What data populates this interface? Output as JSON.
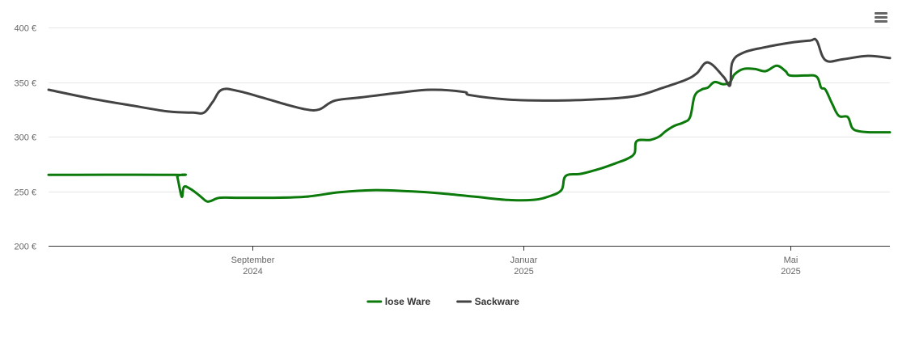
{
  "chart_data": {
    "type": "line",
    "y_ticks": [
      "400 €",
      "350 €",
      "300 €",
      "250 €",
      "200 €"
    ],
    "y_tick_values": [
      400,
      350,
      300,
      250,
      200
    ],
    "ylim": [
      200,
      400
    ],
    "xlim": [
      "2024-06-01",
      "2025-06-15"
    ],
    "x_ticks": [
      {
        "date": "2024-09-01",
        "line1": "September",
        "line2": "2024"
      },
      {
        "date": "2025-01-01",
        "line1": "Januar",
        "line2": "2025"
      },
      {
        "date": "2025-05-01",
        "line1": "Mai",
        "line2": "2025"
      }
    ],
    "grid": "horizontal",
    "legend_position": "bottom-center",
    "series": [
      {
        "name": "lose Ware",
        "color": "#0b7a0b",
        "points": [
          [
            "2024-06-01",
            265
          ],
          [
            "2024-07-28",
            265
          ],
          [
            "2024-07-29",
            263
          ],
          [
            "2024-07-31",
            245
          ],
          [
            "2024-08-01",
            254
          ],
          [
            "2024-08-04",
            252
          ],
          [
            "2024-08-08",
            246
          ],
          [
            "2024-08-11",
            241
          ],
          [
            "2024-08-13",
            241
          ],
          [
            "2024-08-17",
            244
          ],
          [
            "2024-08-24",
            244
          ],
          [
            "2024-09-10",
            244
          ],
          [
            "2024-09-25",
            245
          ],
          [
            "2024-10-10",
            249
          ],
          [
            "2024-10-25",
            251
          ],
          [
            "2024-11-10",
            250
          ],
          [
            "2024-11-25",
            248
          ],
          [
            "2024-12-10",
            245
          ],
          [
            "2024-12-25",
            242
          ],
          [
            "2025-01-05",
            242
          ],
          [
            "2025-01-12",
            245
          ],
          [
            "2025-01-18",
            251
          ],
          [
            "2025-01-20",
            264
          ],
          [
            "2025-01-27",
            266
          ],
          [
            "2025-02-05",
            271
          ],
          [
            "2025-02-12",
            276
          ],
          [
            "2025-02-17",
            280
          ],
          [
            "2025-02-20",
            285
          ],
          [
            "2025-02-21",
            296
          ],
          [
            "2025-02-27",
            297
          ],
          [
            "2025-03-03",
            300
          ],
          [
            "2025-03-06",
            305
          ],
          [
            "2025-03-10",
            310
          ],
          [
            "2025-03-14",
            313
          ],
          [
            "2025-03-17",
            318
          ],
          [
            "2025-03-19",
            337
          ],
          [
            "2025-03-22",
            343
          ],
          [
            "2025-03-25",
            345
          ],
          [
            "2025-03-28",
            350
          ],
          [
            "2025-04-01",
            348
          ],
          [
            "2025-04-04",
            350
          ],
          [
            "2025-04-06",
            357
          ],
          [
            "2025-04-10",
            362
          ],
          [
            "2025-04-15",
            362
          ],
          [
            "2025-04-20",
            360
          ],
          [
            "2025-04-25",
            365
          ],
          [
            "2025-04-29",
            360
          ],
          [
            "2025-05-01",
            356
          ],
          [
            "2025-05-08",
            356
          ],
          [
            "2025-05-13",
            355
          ],
          [
            "2025-05-15",
            345
          ],
          [
            "2025-05-17",
            343
          ],
          [
            "2025-05-20",
            330
          ],
          [
            "2025-05-23",
            319
          ],
          [
            "2025-05-27",
            318
          ],
          [
            "2025-05-29",
            308
          ],
          [
            "2025-06-01",
            305
          ],
          [
            "2025-06-06",
            304
          ],
          [
            "2025-06-11",
            304
          ],
          [
            "2025-06-15",
            304
          ]
        ]
      },
      {
        "name": "Sackware",
        "color": "#434343",
        "points": [
          [
            "2024-06-01",
            343
          ],
          [
            "2024-06-20",
            335
          ],
          [
            "2024-07-10",
            328
          ],
          [
            "2024-07-25",
            323
          ],
          [
            "2024-08-05",
            322
          ],
          [
            "2024-08-10",
            322
          ],
          [
            "2024-08-14",
            332
          ],
          [
            "2024-08-18",
            343
          ],
          [
            "2024-08-25",
            342
          ],
          [
            "2024-09-05",
            336
          ],
          [
            "2024-09-15",
            330
          ],
          [
            "2024-09-25",
            325
          ],
          [
            "2024-10-01",
            325
          ],
          [
            "2024-10-08",
            333
          ],
          [
            "2024-10-20",
            336
          ],
          [
            "2024-11-05",
            340
          ],
          [
            "2024-11-20",
            343
          ],
          [
            "2024-12-05",
            341
          ],
          [
            "2024-12-08",
            338
          ],
          [
            "2024-12-25",
            334
          ],
          [
            "2025-01-10",
            333
          ],
          [
            "2025-02-01",
            334
          ],
          [
            "2025-02-20",
            337
          ],
          [
            "2025-03-05",
            345
          ],
          [
            "2025-03-15",
            352
          ],
          [
            "2025-03-20",
            358
          ],
          [
            "2025-03-25",
            368
          ],
          [
            "2025-04-01",
            355
          ],
          [
            "2025-04-04",
            347
          ],
          [
            "2025-04-05",
            368
          ],
          [
            "2025-04-10",
            377
          ],
          [
            "2025-04-20",
            382
          ],
          [
            "2025-05-01",
            386
          ],
          [
            "2025-05-10",
            388
          ],
          [
            "2025-05-13",
            388
          ],
          [
            "2025-05-17",
            370
          ],
          [
            "2025-05-25",
            371
          ],
          [
            "2025-06-05",
            374
          ],
          [
            "2025-06-15",
            372
          ]
        ]
      }
    ]
  },
  "icons": {
    "menu": "hamburger-menu-icon"
  }
}
